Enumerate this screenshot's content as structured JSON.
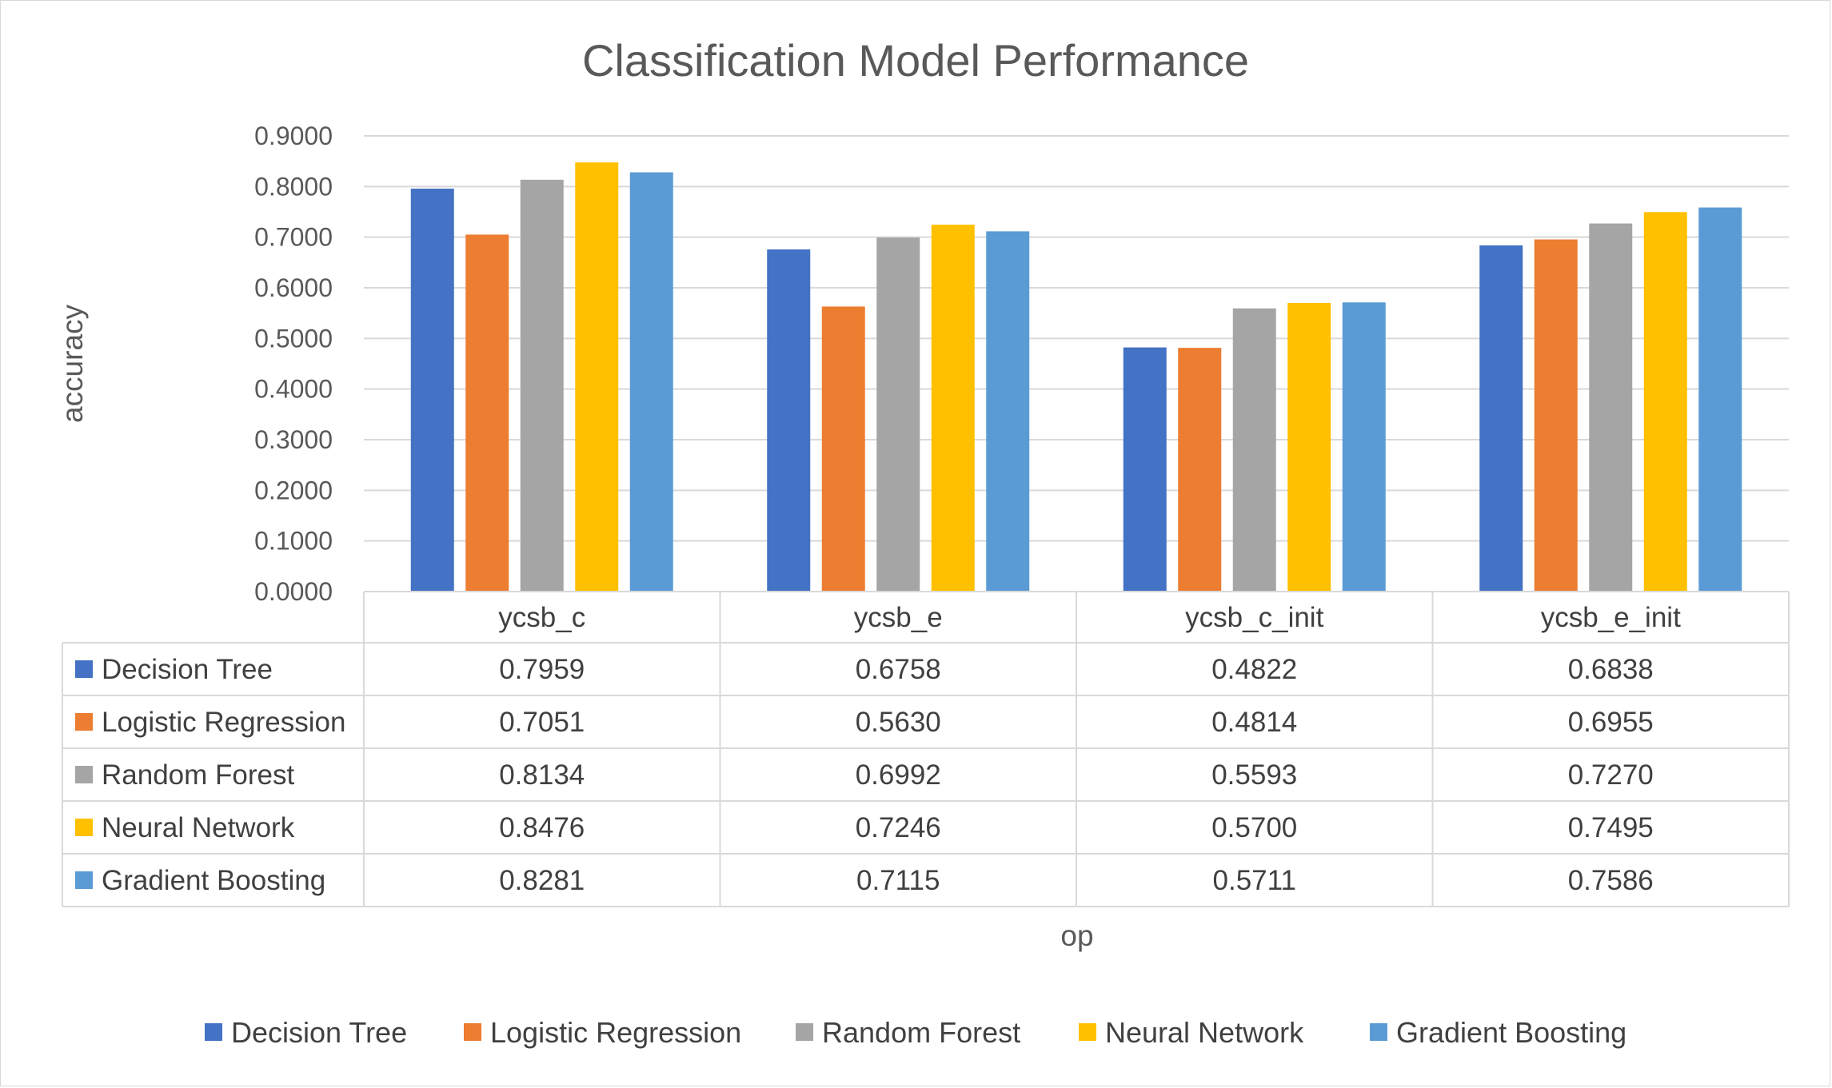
{
  "chart_data": {
    "type": "bar",
    "title": "Classification Model Performance",
    "xlabel": "op",
    "ylabel": "accuracy",
    "ylim": [
      0,
      0.9
    ],
    "ytick_step": 0.1,
    "ytick_labels": [
      "0.0000",
      "0.1000",
      "0.2000",
      "0.3000",
      "0.4000",
      "0.5000",
      "0.6000",
      "0.7000",
      "0.8000",
      "0.9000"
    ],
    "grid": true,
    "legend_position": "bottom",
    "categories": [
      "ycsb_c",
      "ycsb_e",
      "ycsb_c_init",
      "ycsb_e_init"
    ],
    "data_table": true,
    "series": [
      {
        "name": "Decision Tree",
        "color": "#4472C4",
        "values": [
          0.7959,
          0.6758,
          0.4822,
          0.6838
        ],
        "labels": [
          "0.7959",
          "0.6758",
          "0.4822",
          "0.6838"
        ]
      },
      {
        "name": "Logistic Regression",
        "color": "#ED7D31",
        "values": [
          0.7051,
          0.563,
          0.4814,
          0.6955
        ],
        "labels": [
          "0.7051",
          "0.5630",
          "0.4814",
          "0.6955"
        ]
      },
      {
        "name": "Random Forest",
        "color": "#A5A5A5",
        "values": [
          0.8134,
          0.6992,
          0.5593,
          0.727
        ],
        "labels": [
          "0.8134",
          "0.6992",
          "0.5593",
          "0.7270"
        ]
      },
      {
        "name": "Neural Network",
        "color": "#FFC000",
        "values": [
          0.8476,
          0.7246,
          0.57,
          0.7495
        ],
        "labels": [
          "0.8476",
          "0.7246",
          "0.5700",
          "0.7495"
        ]
      },
      {
        "name": "Gradient Boosting",
        "color": "#5B9BD5",
        "values": [
          0.8281,
          0.7115,
          0.5711,
          0.7586
        ],
        "labels": [
          "0.8281",
          "0.7115",
          "0.5711",
          "0.7586"
        ]
      }
    ]
  }
}
